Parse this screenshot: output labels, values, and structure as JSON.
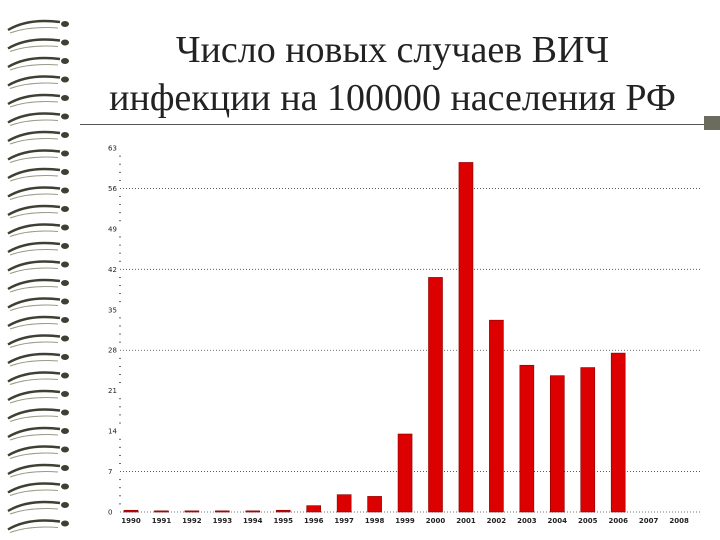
{
  "slide": {
    "title_line1": "Число новых случаев ВИЧ",
    "title_line2": "инфекции на 100000 населения РФ"
  },
  "colors": {
    "bar": "#dd0000",
    "bar_stroke": "#880000",
    "grid": "#444444",
    "binding_ring": "#3f3f33"
  },
  "chart_data": {
    "type": "bar",
    "title": "",
    "xlabel": "",
    "ylabel": "",
    "categories": [
      "1990",
      "1991",
      "1992",
      "1993",
      "1994",
      "1995",
      "1996",
      "1997",
      "1998",
      "1999",
      "2000",
      "2001",
      "2002",
      "2003",
      "2004",
      "2005",
      "2006",
      "2007",
      "2008"
    ],
    "values": [
      0.3,
      0.2,
      0.2,
      0.2,
      0.2,
      0.3,
      1.1,
      3.0,
      2.7,
      13.5,
      40.6,
      60.5,
      33.2,
      25.4,
      23.6,
      25.0,
      27.5,
      0,
      0
    ],
    "yticks": [
      0,
      7,
      14,
      21,
      28,
      35,
      42,
      49,
      56,
      63
    ],
    "ylim": [
      0,
      63
    ],
    "grid": "dotted horizontal at 7, 28, 42, 56",
    "legend": "none"
  }
}
